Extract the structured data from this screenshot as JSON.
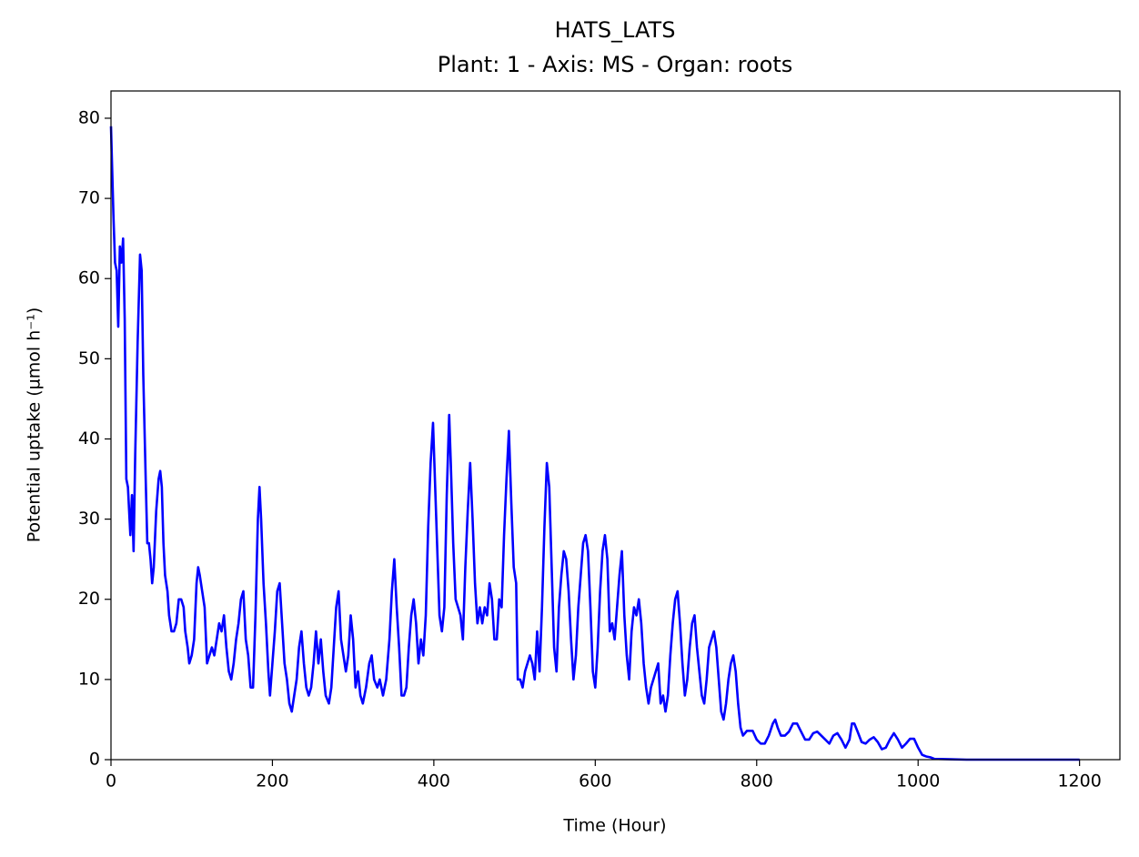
{
  "chart_data": {
    "type": "line",
    "title": "HATS_LATS",
    "subtitle": "Plant: 1 - Axis: MS - Organ: roots",
    "x_label": "Time (Hour)",
    "y_label": "Potential uptake (µmol h⁻¹)",
    "xlim": [
      0,
      1250
    ],
    "ylim": [
      0,
      83.4
    ],
    "xticks": [
      0,
      200,
      400,
      600,
      800,
      1000,
      1200
    ],
    "yticks": [
      0,
      10,
      20,
      30,
      40,
      50,
      60,
      70,
      80
    ],
    "grid": false,
    "x": [
      0,
      3,
      5,
      7,
      9,
      11,
      13,
      15,
      17,
      19,
      21,
      24,
      26,
      28,
      30,
      33,
      36,
      38,
      40,
      43,
      45,
      47,
      49,
      51,
      53,
      56,
      59,
      61,
      63,
      65,
      67,
      70,
      72,
      75,
      78,
      81,
      84,
      87,
      90,
      92,
      95,
      97,
      100,
      103,
      106,
      108,
      110,
      113,
      116,
      119,
      122,
      125,
      128,
      131,
      134,
      137,
      140,
      143,
      146,
      149,
      152,
      155,
      158,
      161,
      164,
      167,
      170,
      173,
      176,
      179,
      182,
      184,
      186,
      189,
      192,
      195,
      197,
      200,
      203,
      206,
      209,
      212,
      215,
      218,
      221,
      224,
      227,
      230,
      233,
      236,
      239,
      242,
      245,
      248,
      251,
      254,
      257,
      260,
      263,
      266,
      270,
      273,
      276,
      279,
      282,
      285,
      288,
      291,
      294,
      297,
      300,
      303,
      306,
      309,
      312,
      316,
      320,
      323,
      326,
      330,
      333,
      337,
      341,
      345,
      348,
      351,
      354,
      357,
      360,
      363,
      366,
      369,
      372,
      375,
      378,
      381,
      384,
      387,
      390,
      393,
      396,
      399,
      402,
      405,
      407,
      410,
      413,
      416,
      419,
      421,
      424,
      427,
      430,
      433,
      436,
      439,
      442,
      445,
      448,
      451,
      454,
      457,
      460,
      463,
      466,
      469,
      472,
      475,
      478,
      481,
      484,
      487,
      490,
      493,
      496,
      499,
      502,
      504,
      507,
      510,
      513,
      516,
      519,
      522,
      525,
      528,
      531,
      534,
      537,
      540,
      543,
      546,
      549,
      552,
      555,
      558,
      561,
      564,
      567,
      570,
      573,
      576,
      579,
      582,
      585,
      588,
      591,
      594,
      597,
      600,
      603,
      606,
      609,
      612,
      615,
      618,
      621,
      624,
      627,
      630,
      633,
      636,
      639,
      642,
      645,
      648,
      651,
      654,
      657,
      660,
      663,
      666,
      669,
      672,
      675,
      678,
      681,
      684,
      687,
      690,
      693,
      696,
      699,
      702,
      705,
      708,
      711,
      714,
      717,
      720,
      723,
      726,
      729,
      732,
      735,
      738,
      741,
      744,
      747,
      750,
      753,
      756,
      759,
      762,
      765,
      768,
      771,
      774,
      777,
      780,
      783,
      788,
      795,
      800,
      805,
      810,
      815,
      820,
      823,
      826,
      830,
      835,
      840,
      845,
      850,
      855,
      860,
      865,
      870,
      875,
      880,
      885,
      890,
      895,
      900,
      905,
      910,
      915,
      918,
      921,
      925,
      930,
      935,
      940,
      945,
      950,
      955,
      960,
      965,
      970,
      975,
      980,
      985,
      990,
      995,
      1000,
      1005,
      1010,
      1015,
      1020,
      1040,
      1060,
      1100,
      1150,
      1200
    ],
    "series": [
      {
        "name": "HATS_LATS",
        "color": "#0000ff",
        "values": [
          79,
          68,
          62,
          61,
          54,
          64,
          62,
          65,
          55,
          35,
          34,
          28,
          33,
          26,
          38,
          52,
          63,
          61,
          48,
          35,
          27,
          27,
          25,
          22,
          24,
          31,
          35,
          36,
          34,
          27,
          23,
          21,
          18,
          16,
          16,
          17,
          20,
          20,
          19,
          16,
          14,
          12,
          13,
          15,
          22,
          24,
          23,
          21,
          19,
          12,
          13,
          14,
          13,
          15,
          17,
          16,
          18,
          14,
          11,
          10,
          12,
          15,
          17,
          20,
          21,
          15,
          13,
          9,
          9,
          18,
          30,
          34,
          30,
          22,
          17,
          11,
          8,
          12,
          16,
          21,
          22,
          17,
          12,
          10,
          7,
          6,
          8,
          10,
          14,
          16,
          12,
          9,
          8,
          9,
          12,
          16,
          12,
          15,
          11,
          8,
          7,
          9,
          14,
          19,
          21,
          15,
          13,
          11,
          13,
          18,
          15,
          9,
          11,
          8,
          7,
          9,
          12,
          13,
          10,
          9,
          10,
          8,
          10,
          15,
          21,
          25,
          19,
          14,
          8,
          8,
          9,
          14,
          18,
          20,
          17,
          12,
          15,
          13,
          18,
          29,
          37,
          42,
          33,
          24,
          18,
          16,
          19,
          33,
          43,
          37,
          27,
          20,
          19,
          18,
          15,
          24,
          31,
          37,
          30,
          22,
          17,
          19,
          17,
          19,
          18,
          22,
          20,
          15,
          15,
          20,
          19,
          28,
          35,
          41,
          32,
          24,
          22,
          10,
          10,
          9,
          11,
          12,
          13,
          12,
          10,
          16,
          11,
          19,
          29,
          37,
          34,
          24,
          14,
          11,
          19,
          23,
          26,
          25,
          21,
          15,
          10,
          13,
          19,
          23,
          27,
          28,
          26,
          19,
          11,
          9,
          14,
          21,
          26,
          28,
          25,
          16,
          17,
          15,
          19,
          23,
          26,
          18,
          13,
          10,
          16,
          19,
          18,
          20,
          17,
          12,
          9,
          7,
          9,
          10,
          11,
          12,
          7,
          8,
          6,
          8,
          13,
          17,
          20,
          21,
          17,
          12,
          8,
          10,
          14,
          17,
          18,
          14,
          11,
          8,
          7,
          10,
          14,
          15,
          16,
          14,
          10,
          6,
          5,
          7,
          10,
          12,
          13,
          11,
          7,
          4,
          3,
          3.6,
          3.6,
          2.5,
          2,
          2,
          3,
          4.5,
          5,
          4,
          3,
          3,
          3.5,
          4.5,
          4.5,
          3.5,
          2.5,
          2.5,
          3.3,
          3.5,
          3,
          2.5,
          2,
          3,
          3.3,
          2.5,
          1.5,
          2.5,
          4.5,
          4.5,
          3.5,
          2.2,
          2,
          2.5,
          2.8,
          2.2,
          1.3,
          1.5,
          2.5,
          3.3,
          2.5,
          1.5,
          2,
          2.6,
          2.6,
          1.5,
          0.6,
          0.4,
          0.3,
          0.1,
          0.05,
          0,
          0,
          0,
          0
        ]
      }
    ]
  }
}
